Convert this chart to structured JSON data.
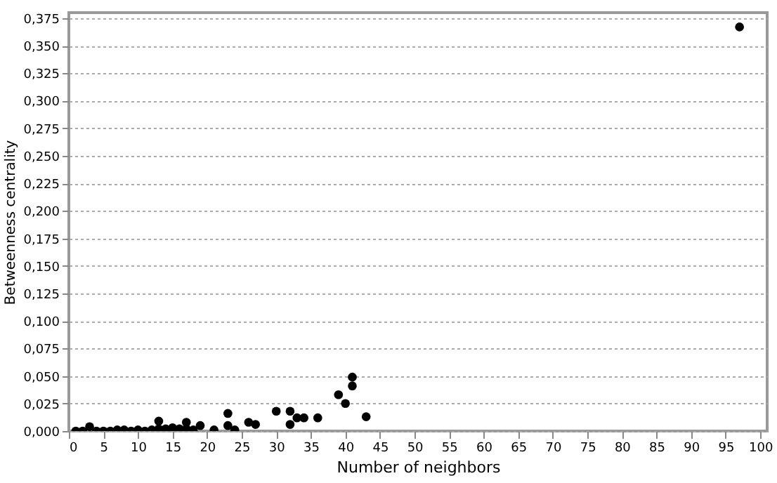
{
  "chart_data": {
    "type": "scatter",
    "xlabel": "Number of neighbors",
    "ylabel": "Betweenness centrality",
    "x": [
      1,
      2,
      3,
      4,
      5,
      6,
      7,
      8,
      9,
      10,
      11,
      12,
      13,
      13,
      14,
      15,
      16,
      17,
      17,
      18,
      19,
      21,
      23,
      23,
      24,
      26,
      27,
      30,
      32,
      32,
      33,
      34,
      36,
      39,
      40,
      41,
      41,
      43,
      97
    ],
    "series": [
      {
        "color": "#000000",
        "values": [
          0,
          0,
          0.004,
          0,
          0,
          0,
          0.001,
          0.001,
          0,
          0.001,
          0,
          0.001,
          0.009,
          0.002,
          0.002,
          0.003,
          0.002,
          0.008,
          0.002,
          0.001,
          0.005,
          0.001,
          0.016,
          0.005,
          0.001,
          0.008,
          0.006,
          0.018,
          0.018,
          0.006,
          0.012,
          0.012,
          0.012,
          0.033,
          0.025,
          0.049,
          0.041,
          0.013,
          0.367
        ]
      }
    ],
    "xlim": [
      0,
      101
    ],
    "xticks": [
      0,
      5,
      10,
      15,
      20,
      25,
      30,
      35,
      40,
      45,
      50,
      55,
      60,
      65,
      70,
      75,
      80,
      85,
      90,
      95,
      100
    ],
    "ylim": [
      0,
      0.38
    ],
    "yticks": [
      {
        "value": 0,
        "label": "0,000"
      },
      {
        "value": 0.025,
        "label": "0,025"
      },
      {
        "value": 0.05,
        "label": "0,050"
      },
      {
        "value": 0.075,
        "label": "0,075"
      },
      {
        "value": 0.1,
        "label": "0,100"
      },
      {
        "value": 0.125,
        "label": "0,125"
      },
      {
        "value": 0.15,
        "label": "0,150"
      },
      {
        "value": 0.175,
        "label": "0,175"
      },
      {
        "value": 0.2,
        "label": "0,200"
      },
      {
        "value": 0.225,
        "label": "0,225"
      },
      {
        "value": 0.25,
        "label": "0,250"
      },
      {
        "value": 0.275,
        "label": "0,275"
      },
      {
        "value": 0.3,
        "label": "0,300"
      },
      {
        "value": 0.325,
        "label": "0,325"
      },
      {
        "value": 0.35,
        "label": "0,350"
      },
      {
        "value": 0.375,
        "label": "0,375"
      }
    ],
    "grid": "y",
    "marker": "circle",
    "legend": false
  }
}
